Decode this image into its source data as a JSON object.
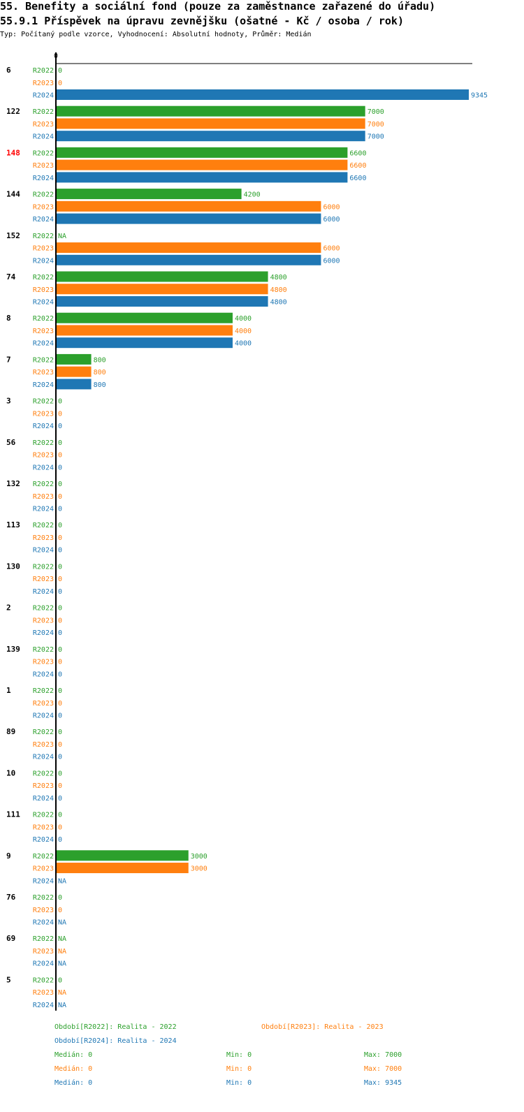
{
  "header": {
    "title": "55. Benefity a sociální fond (pouze za zaměstnance zařazené do úřadu)",
    "subtitle": "55.9.1 Příspěvek na úpravu zevnějšku (ošatné - Kč / osoba / rok)",
    "info": "Typ: Počítaný podle vzorce, Vyhodnocení: Absolutní hodnoty, Průměr: Medián"
  },
  "colors": {
    "R2022": "#2ca02c",
    "R2023": "#ff7f0e",
    "R2024": "#1f77b4",
    "highlight": "#ff0000"
  },
  "chart_data": {
    "type": "bar",
    "orientation": "horizontal",
    "axis_zero_label": "0",
    "xlim": [
      0,
      9345
    ],
    "series_names": [
      "R2022",
      "R2023",
      "R2024"
    ],
    "highlight_category": "148",
    "categories": [
      "6",
      "122",
      "148",
      "144",
      "152",
      "74",
      "8",
      "7",
      "3",
      "56",
      "132",
      "113",
      "130",
      "2",
      "139",
      "1",
      "89",
      "10",
      "111",
      "9",
      "76",
      "69",
      "5"
    ],
    "series": [
      {
        "name": "R2022",
        "values": [
          0,
          7000,
          6600,
          4200,
          null,
          4800,
          4000,
          800,
          0,
          0,
          0,
          0,
          0,
          0,
          0,
          0,
          0,
          0,
          0,
          3000,
          0,
          null,
          0
        ]
      },
      {
        "name": "R2023",
        "values": [
          0,
          7000,
          6600,
          6000,
          6000,
          4800,
          4000,
          800,
          0,
          0,
          0,
          0,
          0,
          0,
          0,
          0,
          0,
          0,
          0,
          3000,
          0,
          null,
          null
        ]
      },
      {
        "name": "R2024",
        "values": [
          9345,
          7000,
          6600,
          6000,
          6000,
          4800,
          4000,
          800,
          0,
          0,
          0,
          0,
          0,
          0,
          0,
          0,
          0,
          0,
          0,
          null,
          null,
          null,
          null
        ]
      }
    ],
    "na_label": "NA"
  },
  "legend": {
    "r2022": "Období[R2022]: Realita - 2022",
    "r2023": "Období[R2023]: Realita - 2023",
    "r2024": "Období[R2024]: Realita - 2024"
  },
  "stats": {
    "r2022": {
      "median": "Medián: 0",
      "min": "Min: 0",
      "max": "Max: 7000"
    },
    "r2023": {
      "median": "Medián: 0",
      "min": "Min: 0",
      "max": "Max: 7000"
    },
    "r2024": {
      "median": "Medián: 0",
      "min": "Min: 0",
      "max": "Max: 9345"
    }
  }
}
